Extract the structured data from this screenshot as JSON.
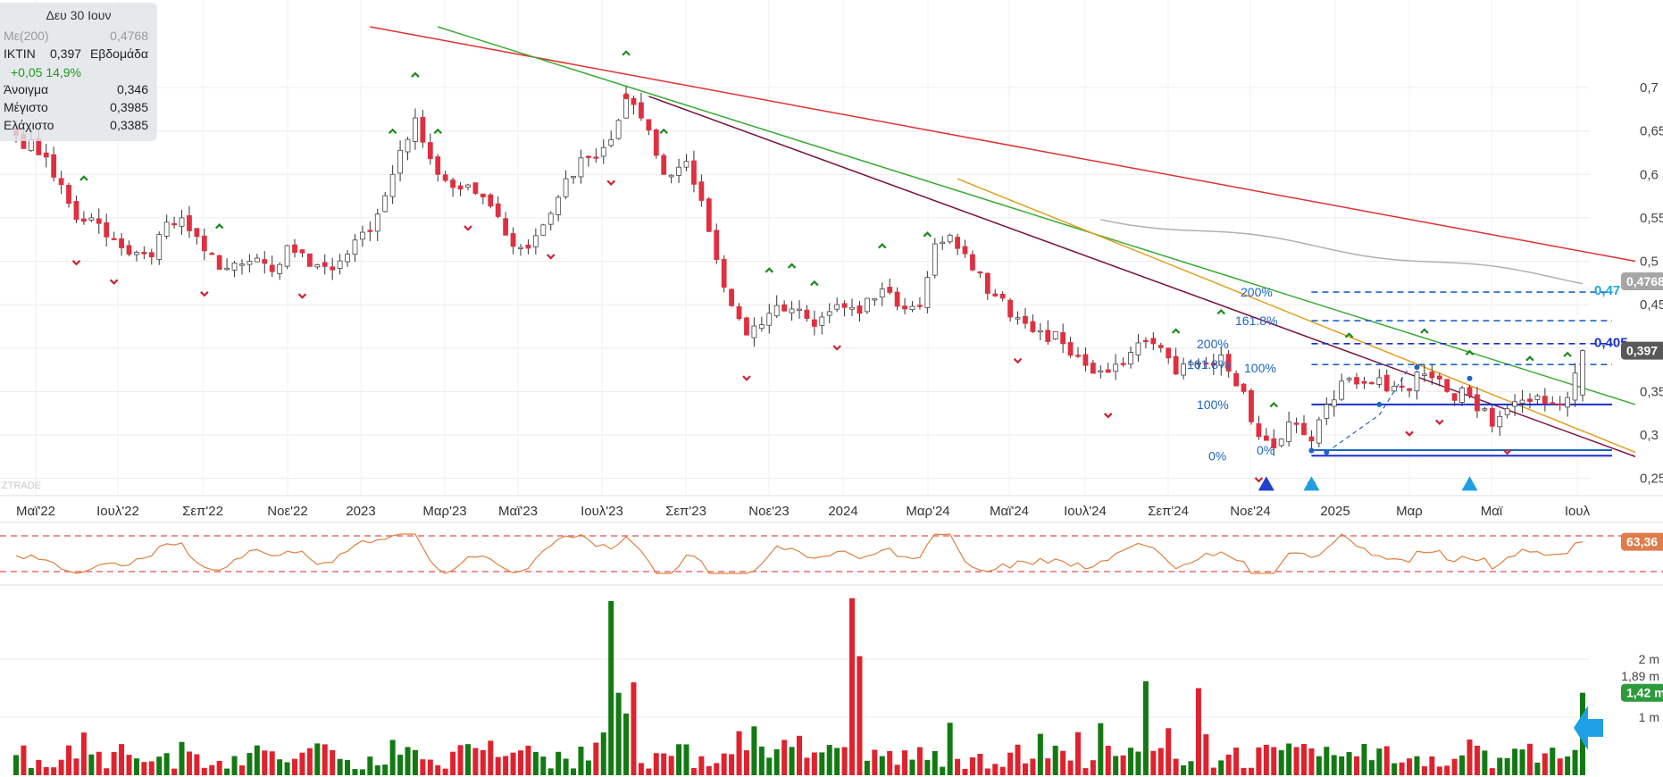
{
  "info": {
    "date": "Δευ 30 Ιουν",
    "ma_label": "Με(200)",
    "ma_value": "0,4768",
    "symbol": "IKTIN",
    "close": "0,397",
    "period": "Εβδομάδα",
    "change": "+0,05 14,9%",
    "open_label": "Άνοιγμα",
    "open_value": "0,346",
    "high_label": "Μέγιστο",
    "high_value": "0,3985",
    "low_label": "Ελάχιστο",
    "low_value": "0,3385"
  },
  "watermark": "ZTRADE",
  "colors": {
    "up_candle": "#ffffff",
    "down_candle": "#e03040",
    "up_volume": "#137a13",
    "down_volume": "#e0222e",
    "trend_red": "#e03030",
    "trend_green": "#3aaa35",
    "trend_purple": "#7a1040",
    "trend_orange": "#e0a020",
    "ma_line": "#b0b0b0",
    "rsi_line": "#e08040",
    "support_blue": "#1a2fd0",
    "fib_blue": "#1e64c8"
  },
  "badges": [
    {
      "id": "ma",
      "text": "0,4768",
      "color": "#a6a6a6"
    },
    {
      "id": "close",
      "text": "0,397",
      "color": "#595959"
    },
    {
      "id": "rsi",
      "text": "63,36",
      "color": "#e07b4a"
    },
    {
      "id": "vol",
      "text": "1,42 m",
      "color": "#2e9a3c"
    }
  ],
  "level_labels": [
    {
      "id": "fib",
      "text": "0,47",
      "color": "#1fa8e0"
    },
    {
      "id": "sup",
      "text": "0,405",
      "color": "#1a2fd0"
    }
  ],
  "fib_labels": [
    {
      "id": "f200a",
      "text": "200%",
      "level": 0.4645
    },
    {
      "id": "f1618a",
      "text": "161.8%",
      "level": 0.4315
    },
    {
      "id": "f200b",
      "text": "200%",
      "level": 0.405
    },
    {
      "id": "f1618b",
      "text": "161.8%",
      "level": 0.381
    },
    {
      "id": "f100a",
      "text": "100%",
      "level": 0.377
    },
    {
      "id": "f100b",
      "text": "100%",
      "level": 0.335
    },
    {
      "id": "f0a",
      "text": "0%",
      "level": 0.2825
    },
    {
      "id": "f0b",
      "text": "0%",
      "level": 0.276
    }
  ],
  "chart_data": [
    {
      "type": "candlestick",
      "interval": "Εβδομάδα",
      "x_labels": [
        "Μαϊ'22",
        "Ιουλ'22",
        "Σεπ'22",
        "Νοε'22",
        "2023",
        "Μαρ'23",
        "Μαϊ'23",
        "Ιουλ'23",
        "Σεπ'23",
        "Νοε'23",
        "2024",
        "Μαρ'24",
        "Μαϊ'24",
        "Ιουλ'24",
        "Σεπ'24",
        "Νοε'24",
        "2025",
        "Μαρ",
        "Μαϊ",
        "Ιουλ"
      ],
      "y_ticks": [
        "0,25",
        "0,3",
        "0,35",
        "0,4",
        "0,45",
        "0,5",
        "0,55",
        "0,6",
        "0,65",
        "0,7"
      ],
      "ylim": [
        0.23,
        0.77
      ],
      "close_anchors": [
        [
          0,
          0.645
        ],
        [
          4,
          0.62
        ],
        [
          8,
          0.548
        ],
        [
          10,
          0.55
        ],
        [
          12,
          0.528
        ],
        [
          15,
          0.508
        ],
        [
          18,
          0.505
        ],
        [
          20,
          0.545
        ],
        [
          22,
          0.55
        ],
        [
          25,
          0.512
        ],
        [
          28,
          0.492
        ],
        [
          31,
          0.5
        ],
        [
          34,
          0.488
        ],
        [
          36,
          0.518
        ],
        [
          39,
          0.494
        ],
        [
          42,
          0.49
        ],
        [
          44,
          0.508
        ],
        [
          47,
          0.535
        ],
        [
          50,
          0.6
        ],
        [
          53,
          0.665
        ],
        [
          56,
          0.6
        ],
        [
          59,
          0.583
        ],
        [
          62,
          0.574
        ],
        [
          65,
          0.53
        ],
        [
          68,
          0.515
        ],
        [
          71,
          0.555
        ],
        [
          73,
          0.595
        ],
        [
          76,
          0.62
        ],
        [
          79,
          0.64
        ],
        [
          81,
          0.69
        ],
        [
          83,
          0.665
        ],
        [
          86,
          0.6
        ],
        [
          89,
          0.615
        ],
        [
          91,
          0.57
        ],
        [
          94,
          0.47
        ],
        [
          97,
          0.415
        ],
        [
          100,
          0.44
        ],
        [
          103,
          0.445
        ],
        [
          106,
          0.425
        ],
        [
          109,
          0.45
        ],
        [
          112,
          0.44
        ],
        [
          115,
          0.468
        ],
        [
          118,
          0.445
        ],
        [
          120,
          0.448
        ],
        [
          122,
          0.52
        ],
        [
          124,
          0.53
        ],
        [
          127,
          0.49
        ],
        [
          130,
          0.46
        ],
        [
          133,
          0.435
        ],
        [
          136,
          0.42
        ],
        [
          139,
          0.405
        ],
        [
          142,
          0.38
        ],
        [
          145,
          0.372
        ],
        [
          148,
          0.395
        ],
        [
          151,
          0.405
        ],
        [
          154,
          0.37
        ],
        [
          157,
          0.383
        ],
        [
          160,
          0.392
        ],
        [
          163,
          0.35
        ],
        [
          165,
          0.298
        ],
        [
          167,
          0.285
        ],
        [
          169,
          0.315
        ],
        [
          172,
          0.293
        ],
        [
          174,
          0.335
        ],
        [
          177,
          0.365
        ],
        [
          180,
          0.36
        ],
        [
          184,
          0.355
        ],
        [
          187,
          0.37
        ],
        [
          190,
          0.35
        ],
        [
          193,
          0.345
        ],
        [
          196,
          0.31
        ],
        [
          198,
          0.33
        ],
        [
          200,
          0.34
        ],
        [
          202,
          0.345
        ],
        [
          204,
          0.337
        ],
        [
          206,
          0.343
        ],
        [
          208,
          0.397
        ]
      ],
      "ma200": {
        "name": "Με(200)",
        "from_week": 144,
        "to_week": 208,
        "start": 0.55,
        "end": 0.4768
      },
      "trendlines": [
        {
          "color": "trend_red",
          "from": [
            47,
            0.77
          ],
          "to": [
            215,
            0.5
          ]
        },
        {
          "color": "trend_green",
          "from": [
            56,
            0.77
          ],
          "to": [
            215,
            0.335
          ]
        },
        {
          "color": "trend_purple",
          "from": [
            84,
            0.69
          ],
          "to": [
            215,
            0.275
          ]
        },
        {
          "color": "trend_orange",
          "from": [
            125,
            0.595
          ],
          "to": [
            215,
            0.28
          ]
        }
      ],
      "horizontal_levels": [
        {
          "color": "fib_blue",
          "value": 0.4645,
          "dashed": true
        },
        {
          "color": "fib_blue",
          "value": 0.4315,
          "dashed": true
        },
        {
          "color": "support_blue",
          "value": 0.405,
          "dashed": true
        },
        {
          "color": "fib_blue",
          "value": 0.381,
          "dashed": true
        },
        {
          "color": "support_blue",
          "value": 0.335,
          "dashed": false
        },
        {
          "color": "support_blue",
          "value": 0.276,
          "dashed": false
        },
        {
          "color": "fib_blue",
          "value": 0.2825,
          "dashed": false
        }
      ]
    },
    {
      "type": "line",
      "name": "RSI",
      "last_value": 63.36,
      "ylim": [
        25,
        75
      ],
      "reference_lines": [
        30,
        70
      ]
    },
    {
      "type": "bar",
      "name": "Volume",
      "y_ticks": [
        "1 m",
        "1,89 m",
        "2 m"
      ],
      "ylim": [
        0,
        3.2
      ],
      "last_value": 1.42,
      "spikes": [
        [
          79,
          3.0
        ],
        [
          111,
          3.05
        ],
        [
          112,
          2.05
        ],
        [
          80,
          1.42
        ],
        [
          82,
          1.6
        ],
        [
          150,
          1.62
        ],
        [
          157,
          1.5
        ]
      ]
    }
  ]
}
